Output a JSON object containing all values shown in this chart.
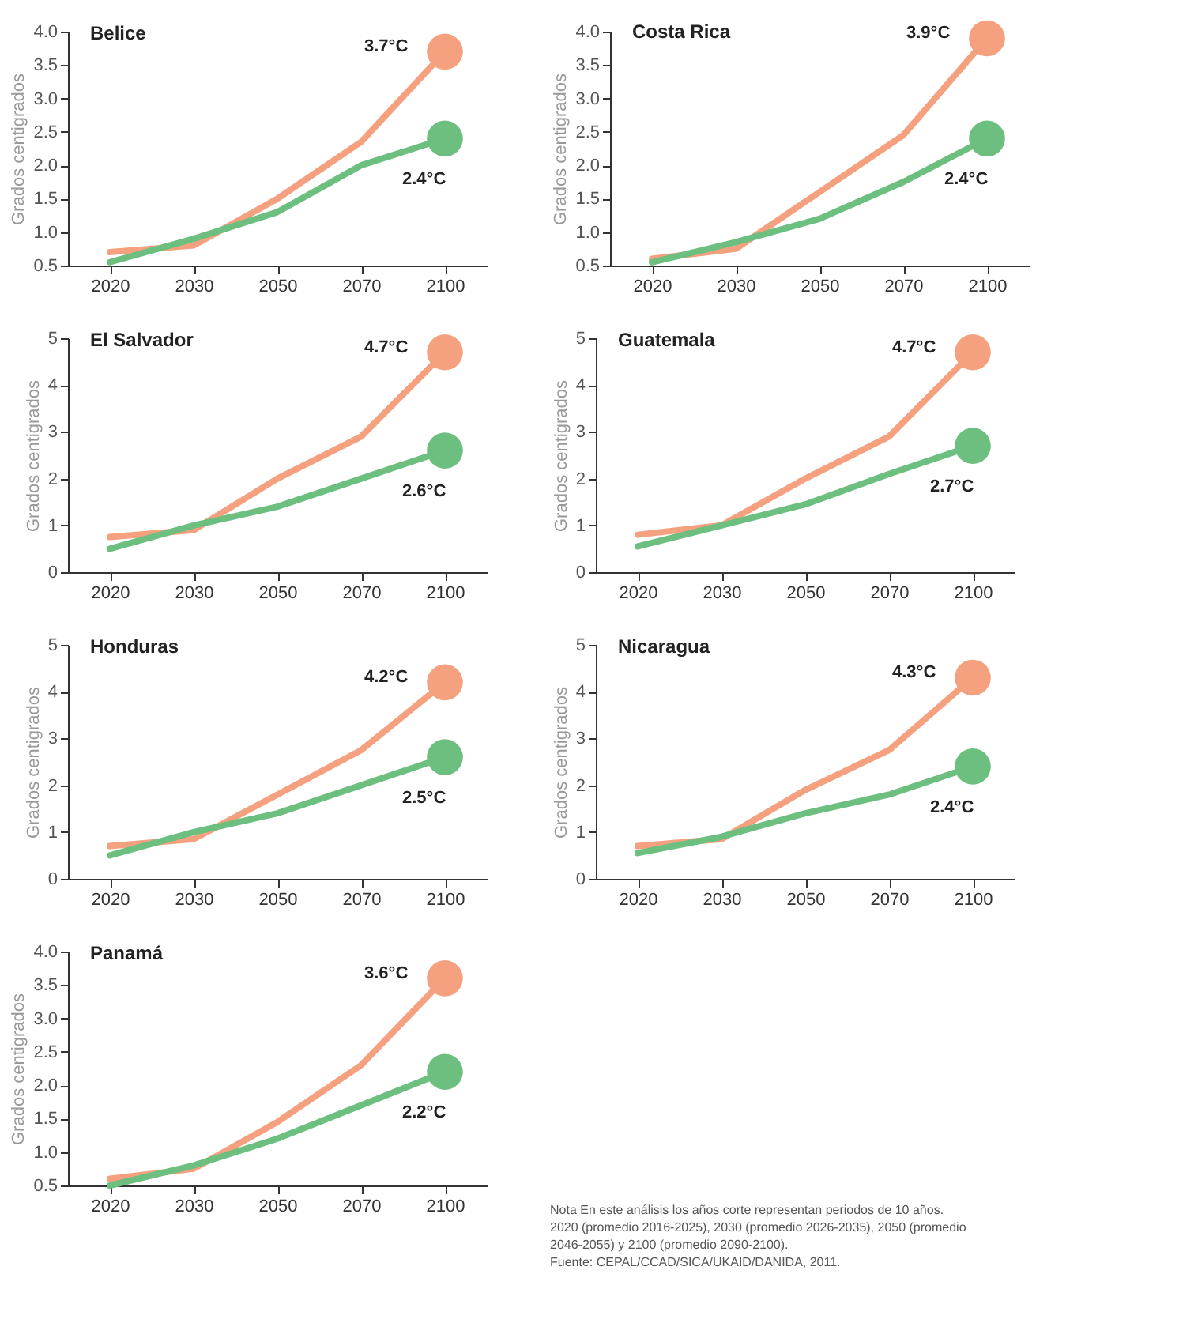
{
  "chart_data": [
    {
      "type": "line",
      "title": "Belice",
      "ylabel": "Grados centigrados",
      "categories": [
        "2020",
        "2030",
        "2050",
        "2070",
        "2100"
      ],
      "ylim": [
        0.5,
        4.0
      ],
      "yticks": [
        {
          "value": 0.5,
          "label": "0.5"
        },
        {
          "value": 1.0,
          "label": "1.0"
        },
        {
          "value": 1.5,
          "label": "1.5"
        },
        {
          "value": 2.0,
          "label": "2.0"
        },
        {
          "value": 2.5,
          "label": "2.5"
        },
        {
          "value": 3.0,
          "label": "3.0"
        },
        {
          "value": 3.5,
          "label": "3.5"
        },
        {
          "value": 4.0,
          "label": "4.0"
        }
      ],
      "grid": false,
      "legend": false,
      "marker": "none",
      "line_style": "solid",
      "series": [
        {
          "color": "#f5a07e",
          "values": [
            0.7,
            0.8,
            1.5,
            2.35,
            3.7
          ]
        },
        {
          "color": "#6dbf80",
          "values": [
            0.55,
            0.9,
            1.3,
            2.0,
            2.4
          ]
        }
      ],
      "annotations": [
        {
          "text": "3.7°C",
          "x": "2100",
          "y": 3.7
        },
        {
          "text": "2.4°C",
          "x": "2100",
          "y": 2.4
        }
      ]
    },
    {
      "type": "line",
      "title": "Costa Rica",
      "ylabel": "Grados centigrados",
      "categories": [
        "2020",
        "2030",
        "2050",
        "2070",
        "2100"
      ],
      "ylim": [
        0.5,
        4.0
      ],
      "yticks": [
        {
          "value": 0.5,
          "label": "0.5"
        },
        {
          "value": 1.0,
          "label": "1.0"
        },
        {
          "value": 1.5,
          "label": "1.5"
        },
        {
          "value": 2.0,
          "label": "2.0"
        },
        {
          "value": 2.5,
          "label": "2.5"
        },
        {
          "value": 3.0,
          "label": "3.0"
        },
        {
          "value": 3.5,
          "label": "3.5"
        },
        {
          "value": 4.0,
          "label": "4.0"
        }
      ],
      "grid": false,
      "legend": false,
      "marker": "none",
      "line_style": "solid",
      "series": [
        {
          "color": "#f5a07e",
          "values": [
            0.6,
            0.75,
            1.6,
            2.45,
            3.9
          ]
        },
        {
          "color": "#6dbf80",
          "values": [
            0.55,
            0.85,
            1.2,
            1.75,
            2.4
          ]
        }
      ],
      "annotations": [
        {
          "text": "3.9°C",
          "x": "2100",
          "y": 3.9
        },
        {
          "text": "2.4°C",
          "x": "2100",
          "y": 2.4
        }
      ]
    },
    {
      "type": "line",
      "title": "El Salvador",
      "ylabel": "Grados centigrados",
      "categories": [
        "2020",
        "2030",
        "2050",
        "2070",
        "2100"
      ],
      "ylim": [
        0,
        5
      ],
      "yticks": [
        0,
        1,
        2,
        3,
        4,
        5
      ],
      "grid": false,
      "legend": false,
      "marker": "none",
      "line_style": "solid",
      "series": [
        {
          "color": "#f5a07e",
          "values": [
            0.75,
            0.9,
            2.0,
            2.9,
            4.7
          ]
        },
        {
          "color": "#6dbf80",
          "values": [
            0.5,
            1.0,
            1.4,
            2.0,
            2.6
          ]
        }
      ],
      "annotations": [
        {
          "text": "4.7°C",
          "x": "2100",
          "y": 4.7
        },
        {
          "text": "2.6°C",
          "x": "2100",
          "y": 2.6
        }
      ]
    },
    {
      "type": "line",
      "title": "Guatemala",
      "ylabel": "Grados centigrados",
      "categories": [
        "2020",
        "2030",
        "2050",
        "2070",
        "2100"
      ],
      "ylim": [
        0,
        5
      ],
      "yticks": [
        0,
        1,
        2,
        3,
        4,
        5
      ],
      "grid": false,
      "legend": false,
      "marker": "none",
      "line_style": "solid",
      "series": [
        {
          "color": "#f5a07e",
          "values": [
            0.8,
            1.0,
            2.0,
            2.9,
            4.7
          ]
        },
        {
          "color": "#6dbf80",
          "values": [
            0.55,
            1.0,
            1.45,
            2.1,
            2.7
          ]
        }
      ],
      "annotations": [
        {
          "text": "4.7°C",
          "x": "2100",
          "y": 4.7
        },
        {
          "text": "2.7°C",
          "x": "2100",
          "y": 2.7
        }
      ]
    },
    {
      "type": "line",
      "title": "Honduras",
      "ylabel": "Grados centigrados",
      "categories": [
        "2020",
        "2030",
        "2050",
        "2070",
        "2100"
      ],
      "ylim": [
        0,
        5
      ],
      "yticks": [
        0,
        1,
        2,
        3,
        4,
        5
      ],
      "grid": false,
      "legend": false,
      "marker": "none",
      "line_style": "solid",
      "series": [
        {
          "color": "#f5a07e",
          "values": [
            0.7,
            0.85,
            1.8,
            2.75,
            4.2
          ]
        },
        {
          "color": "#6dbf80",
          "values": [
            0.5,
            1.0,
            1.4,
            2.0,
            2.6
          ]
        }
      ],
      "annotations": [
        {
          "text": "4.2°C",
          "x": "2100",
          "y": 4.2
        },
        {
          "text": "2.5°C",
          "x": "2100",
          "y": 2.6
        }
      ]
    },
    {
      "type": "line",
      "title": "Nicaragua",
      "ylabel": "Grados centigrados",
      "categories": [
        "2020",
        "2030",
        "2050",
        "2070",
        "2100"
      ],
      "ylim": [
        0,
        5
      ],
      "yticks": [
        0,
        1,
        2,
        3,
        4,
        5
      ],
      "grid": false,
      "legend": false,
      "marker": "none",
      "line_style": "solid",
      "series": [
        {
          "color": "#f5a07e",
          "values": [
            0.7,
            0.85,
            1.9,
            2.75,
            4.3
          ]
        },
        {
          "color": "#6dbf80",
          "values": [
            0.55,
            0.9,
            1.4,
            1.8,
            2.4
          ]
        }
      ],
      "annotations": [
        {
          "text": "4.3°C",
          "x": "2100",
          "y": 4.3
        },
        {
          "text": "2.4°C",
          "x": "2100",
          "y": 2.4
        }
      ]
    },
    {
      "type": "line",
      "title": "Panamá",
      "ylabel": "Grados centigrados",
      "categories": [
        "2020",
        "2030",
        "2050",
        "2070",
        "2100"
      ],
      "ylim": [
        0.5,
        4.0
      ],
      "yticks": [
        {
          "value": 0.5,
          "label": "0.5"
        },
        {
          "value": 1.0,
          "label": "1.0"
        },
        {
          "value": 1.5,
          "label": "1.5"
        },
        {
          "value": 2.0,
          "label": "2.0"
        },
        {
          "value": 2.5,
          "label": "2.5"
        },
        {
          "value": 3.0,
          "label": "3.0"
        },
        {
          "value": 3.5,
          "label": "3.5"
        },
        {
          "value": 4.0,
          "label": "4.0"
        }
      ],
      "grid": false,
      "legend": false,
      "marker": "none",
      "line_style": "solid",
      "series": [
        {
          "color": "#f5a07e",
          "values": [
            0.6,
            0.75,
            1.45,
            2.3,
            3.6
          ]
        },
        {
          "color": "#6dbf80",
          "values": [
            0.5,
            0.8,
            1.2,
            1.7,
            2.2
          ]
        }
      ],
      "annotations": [
        {
          "text": "3.6°C",
          "x": "2100",
          "y": 3.6
        },
        {
          "text": "2.2°C",
          "x": "2100",
          "y": 2.2
        },
        "Nota En este análisis los años corte representan periodos de 10 años.  2020 (promedio 2016-2025), 2030 (promedio 2026-2035), 2050 (promedio 2046-2055) y 2100 (promedio 2090-2100).",
        "Fuente: CEPAL/CCAD/SICA/UKAID/DANIDA, 2011."
      ]
    }
  ]
}
